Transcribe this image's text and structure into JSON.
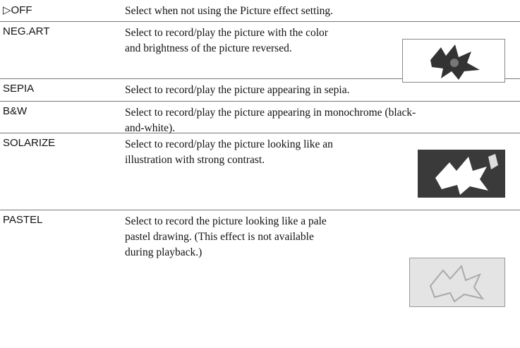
{
  "table": {
    "rows": [
      {
        "label": "▷OFF",
        "description": [
          "Select when not using the Picture effect setting."
        ]
      },
      {
        "label": "NEG.ART",
        "description": [
          "Select to record/play the picture with the color",
          "and brightness of the picture reversed."
        ]
      },
      {
        "label": "SEPIA",
        "description": [
          "Select to record/play the picture appearing in sepia."
        ]
      },
      {
        "label": "B&W",
        "description": [
          "Select to record/play the picture appearing in monochrome (black-",
          "and-white)."
        ]
      },
      {
        "label": "SOLARIZE",
        "description": [
          "Select to record/play the picture looking like an",
          "illustration with strong contrast."
        ]
      },
      {
        "label": "PASTEL",
        "description": [
          "Select to record the picture looking like a pale",
          "pastel drawing. (This effect is not available",
          "during playback.)"
        ]
      }
    ]
  }
}
